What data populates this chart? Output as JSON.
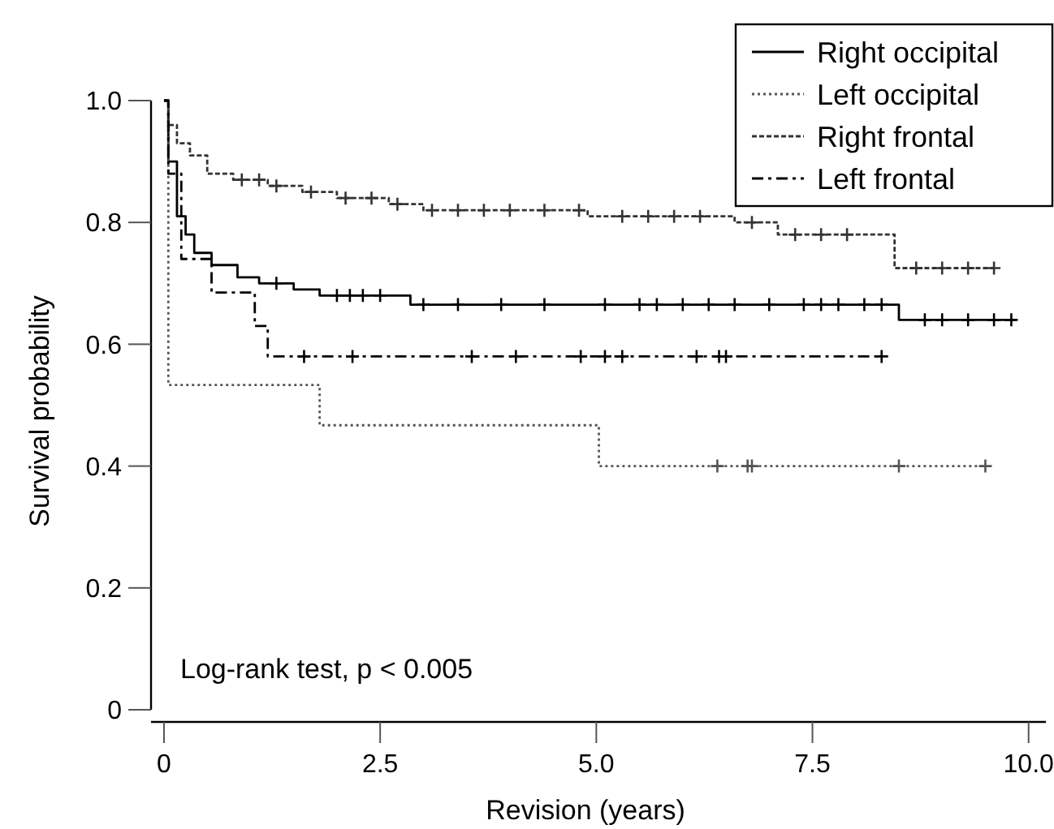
{
  "chart_data": {
    "type": "step",
    "xlabel": "Revision (years)",
    "ylabel": "Survival probability",
    "xlim": [
      -0.15,
      10.2
    ],
    "ylim": [
      -0.02,
      1.0
    ],
    "xticks": [
      0,
      2.5,
      {
        "value": 5,
        "label": "5.0"
      },
      {
        "value": 7.5,
        "label": "7.5"
      },
      {
        "value": 10,
        "label": "10.0"
      }
    ],
    "yticks": [
      0,
      0.2,
      0.4,
      0.6,
      0.8,
      {
        "value": 1,
        "label": "1.0"
      }
    ],
    "grid": false,
    "legend": "top right",
    "marker": "none",
    "annotations": [
      "Log-rank test, p < 0.005"
    ],
    "series": [
      {
        "name": "Right occipital",
        "color": "#000000",
        "line_style": "solid",
        "x": [
          0,
          0.05,
          0.15,
          0.25,
          0.35,
          0.55,
          0.85,
          1.1,
          1.5,
          1.8,
          2.85,
          8.5,
          9.85
        ],
        "values": [
          1,
          0.9,
          0.81,
          0.78,
          0.75,
          0.73,
          0.71,
          0.7,
          0.69,
          0.68,
          0.665,
          0.64,
          0.64
        ]
      },
      {
        "name": "Left occipital",
        "color": "#555555",
        "line_style": "dotted",
        "x": [
          0,
          0.05,
          1.8,
          5.03,
          9.5
        ],
        "values": [
          1,
          0.533,
          0.467,
          0.4,
          0.4
        ]
      },
      {
        "name": "Right frontal",
        "color": "#333333",
        "line_style": "dashed",
        "x": [
          0,
          0.05,
          0.15,
          0.3,
          0.5,
          0.8,
          1.2,
          1.6,
          2.0,
          2.6,
          3.0,
          4.9,
          6.6,
          7.1,
          8.45,
          9.6
        ],
        "values": [
          1,
          0.96,
          0.93,
          0.91,
          0.88,
          0.87,
          0.86,
          0.85,
          0.84,
          0.83,
          0.82,
          0.81,
          0.8,
          0.78,
          0.725,
          0.725
        ]
      },
      {
        "name": "Left frontal",
        "color": "#000000",
        "line_style": "dashdot",
        "x": [
          0,
          0.05,
          0.2,
          0.55,
          1.05,
          1.2,
          8.3
        ],
        "values": [
          1,
          0.88,
          0.74,
          0.685,
          0.63,
          0.58,
          0.58
        ]
      },
      {
        "type": "scatter",
        "marker": "cross",
        "color": "#000000",
        "x": [
          1.3,
          2.0,
          2.15,
          2.3,
          2.5,
          3.0,
          3.4,
          3.9,
          4.4,
          5.1,
          5.5,
          5.7,
          6.0,
          6.3,
          6.6,
          7.0,
          7.4,
          7.6,
          7.8,
          8.1,
          8.3,
          8.8,
          9.0,
          9.3,
          9.6,
          9.8
        ],
        "values": [
          0.7,
          0.68,
          0.68,
          0.68,
          0.68,
          0.665,
          0.665,
          0.665,
          0.665,
          0.665,
          0.665,
          0.665,
          0.665,
          0.665,
          0.665,
          0.665,
          0.665,
          0.665,
          0.665,
          0.665,
          0.665,
          0.64,
          0.64,
          0.64,
          0.64,
          0.64
        ]
      },
      {
        "type": "scatter",
        "marker": "cross",
        "color": "#555555",
        "x": [
          6.4,
          6.75,
          6.8,
          8.5,
          9.5
        ],
        "values": [
          0.4,
          0.4,
          0.4,
          0.4,
          0.4
        ]
      },
      {
        "type": "scatter",
        "marker": "cross",
        "color": "#333333",
        "x": [
          0.9,
          1.1,
          1.3,
          1.7,
          2.1,
          2.4,
          2.7,
          3.1,
          3.4,
          3.7,
          4.0,
          4.4,
          4.8,
          5.3,
          5.6,
          5.9,
          6.2,
          6.8,
          7.3,
          7.6,
          7.9,
          8.7,
          9.0,
          9.3,
          9.6
        ],
        "values": [
          0.87,
          0.87,
          0.86,
          0.85,
          0.84,
          0.84,
          0.83,
          0.82,
          0.82,
          0.82,
          0.82,
          0.82,
          0.82,
          0.81,
          0.81,
          0.81,
          0.81,
          0.8,
          0.78,
          0.78,
          0.78,
          0.725,
          0.725,
          0.725,
          0.725
        ]
      },
      {
        "type": "scatter",
        "marker": "cross",
        "color": "#000000",
        "x": [
          1.62,
          2.18,
          3.56,
          4.07,
          4.82,
          5.1,
          5.3,
          6.16,
          6.42,
          6.5,
          8.3
        ],
        "values": [
          0.58,
          0.58,
          0.58,
          0.58,
          0.58,
          0.58,
          0.58,
          0.58,
          0.58,
          0.58,
          0.58
        ]
      }
    ]
  }
}
